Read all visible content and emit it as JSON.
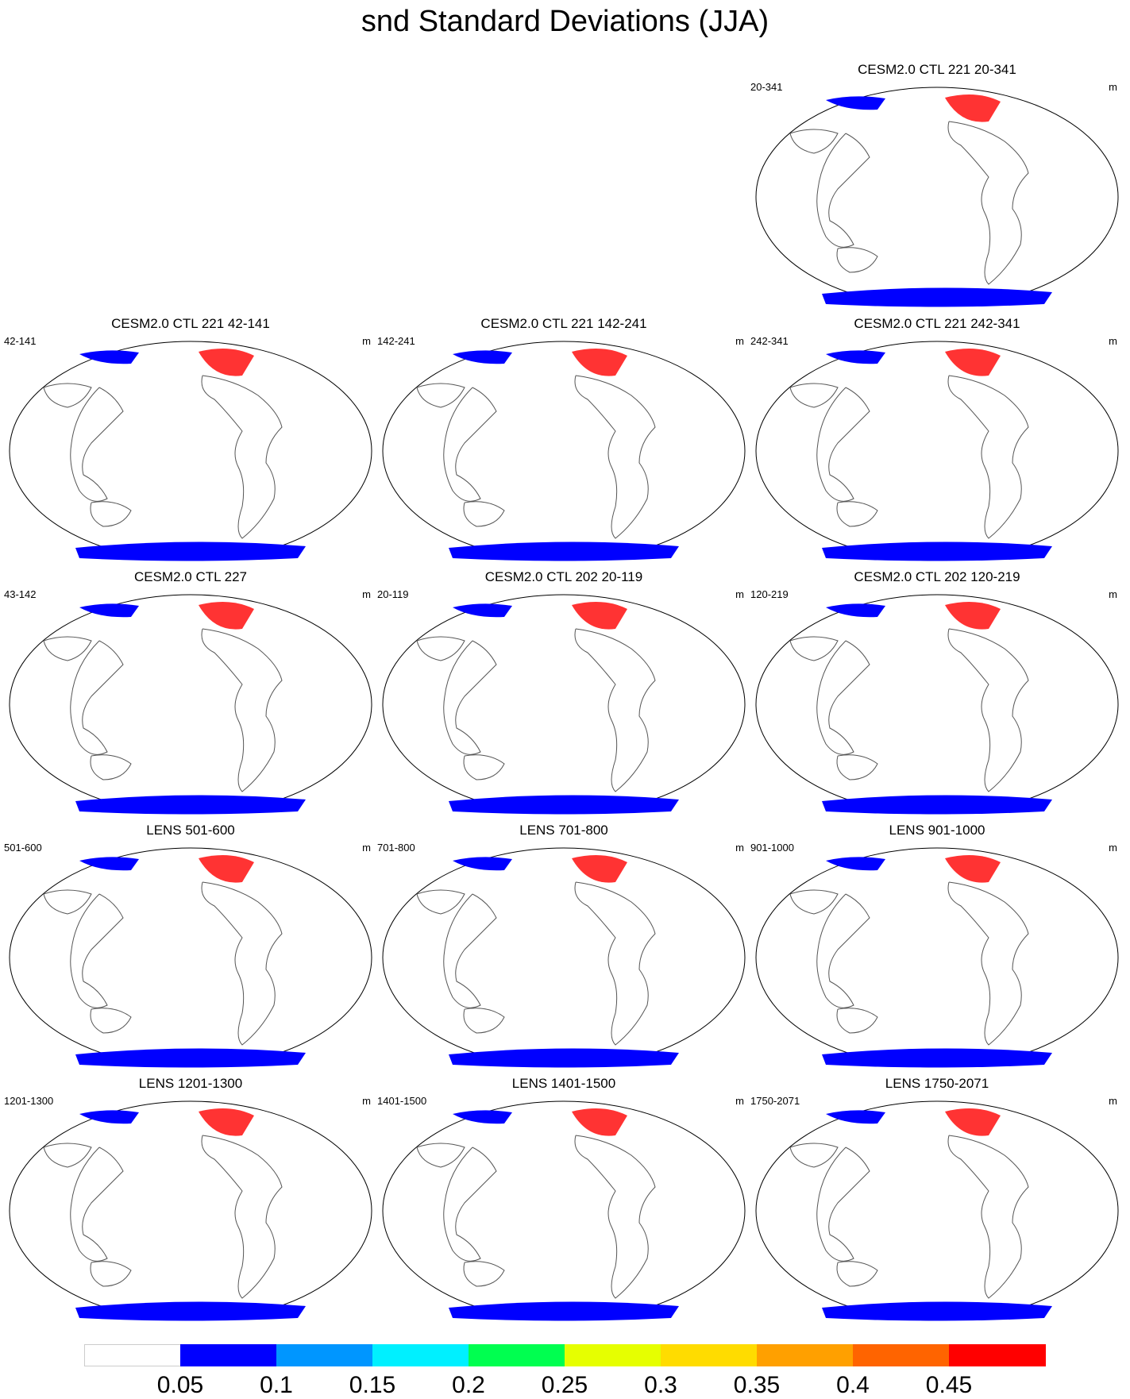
{
  "title": "snd Standard Deviations (JJA)",
  "panels": [
    {
      "title": "CESM2.0 CTL 221 20-341",
      "left": "20-341",
      "right": "m"
    },
    {
      "title": "CESM2.0 CTL 221 42-141",
      "left": "42-141",
      "right": "m"
    },
    {
      "title": "CESM2.0 CTL 221 142-241",
      "left": "142-241",
      "right": "m"
    },
    {
      "title": "CESM2.0 CTL 221 242-341",
      "left": "242-341",
      "right": "m"
    },
    {
      "title": "CESM2.0 CTL 227",
      "left": "43-142",
      "right": "m"
    },
    {
      "title": "CESM2.0 CTL 202 20-119",
      "left": "20-119",
      "right": "m"
    },
    {
      "title": "CESM2.0 CTL 202 120-219",
      "left": "120-219",
      "right": "m"
    },
    {
      "title": "LENS 501-600",
      "left": "501-600",
      "right": "m"
    },
    {
      "title": "LENS 701-800",
      "left": "701-800",
      "right": "m"
    },
    {
      "title": "LENS 901-1000",
      "left": "901-1000",
      "right": "m"
    },
    {
      "title": "LENS 1201-1300",
      "left": "1201-1300",
      "right": "m"
    },
    {
      "title": "LENS 1401-1500",
      "left": "1401-1500",
      "right": "m"
    },
    {
      "title": "LENS 1750-2071",
      "left": "1750-2071",
      "right": "m"
    }
  ],
  "colorbar": {
    "labels": [
      "0.05",
      "0.1",
      "0.15",
      "0.2",
      "0.25",
      "0.3",
      "0.35",
      "0.4",
      "0.45"
    ],
    "colors": [
      "#ffffff",
      "#0000ff",
      "#0096ff",
      "#00f0ff",
      "#00ff50",
      "#e6ff00",
      "#ffdc00",
      "#ffa000",
      "#ff6400",
      "#ff0000"
    ]
  }
}
